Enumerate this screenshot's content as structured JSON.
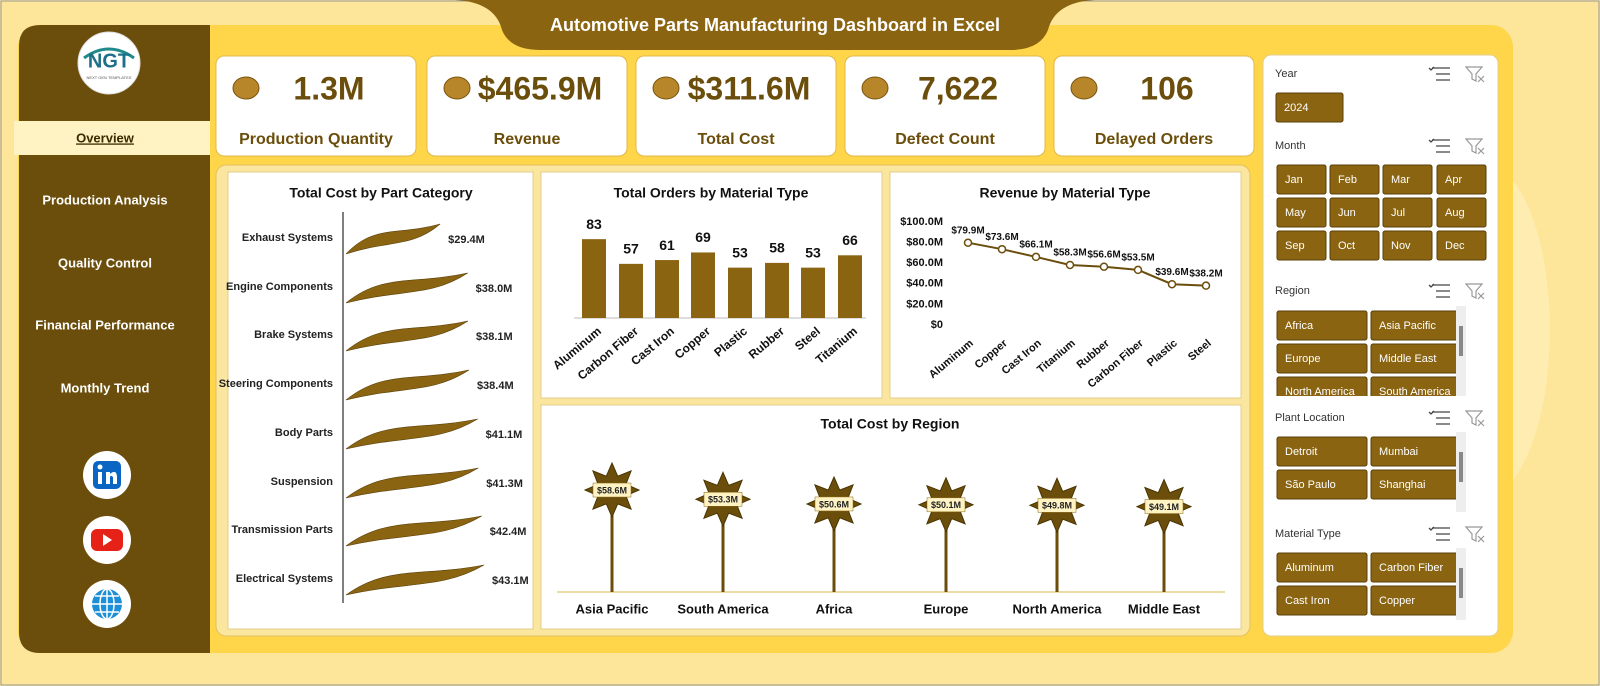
{
  "header": {
    "title": "Automotive Parts Manufacturing Dashboard in Excel"
  },
  "logo": {
    "text": "NGT",
    "subtitle": "NEXT GEN TEMPLATES"
  },
  "navigation": [
    "Overview",
    "Production Analysis",
    "Quality Control",
    "Financial Performance",
    "Monthly Trend"
  ],
  "kpis": [
    {
      "value": "1.3M",
      "label": "Production Quantity"
    },
    {
      "value": "$465.9M",
      "label": "Revenue"
    },
    {
      "value": "$311.6M",
      "label": "Total Cost"
    },
    {
      "value": "7,622",
      "label": "Defect Count"
    },
    {
      "value": "106",
      "label": "Delayed Orders"
    }
  ],
  "chart_data": [
    {
      "type": "bar",
      "orientation": "horizontal",
      "title": "Total Cost by Part Category",
      "color": "#8a6410",
      "categories": [
        "Exhaust Systems",
        "Engine Components",
        "Brake Systems",
        "Steering Components",
        "Body Parts",
        "Suspension",
        "Transmission Parts",
        "Electrical Systems"
      ],
      "values": [
        29.4,
        38.0,
        38.1,
        38.4,
        41.1,
        41.3,
        42.4,
        43.1
      ],
      "value_labels": [
        "$29.4M",
        "$38.0M",
        "$38.1M",
        "$38.4M",
        "$41.1M",
        "$41.3M",
        "$42.4M",
        "$43.1M"
      ]
    },
    {
      "type": "bar",
      "orientation": "vertical",
      "title": "Total Orders by Material Type",
      "color": "#8a6410",
      "categories": [
        "Aluminum",
        "Carbon Fiber",
        "Cast Iron",
        "Copper",
        "Plastic",
        "Rubber",
        "Steel",
        "Titanium"
      ],
      "values": [
        83,
        57,
        61,
        69,
        53,
        58,
        53,
        66
      ]
    },
    {
      "type": "line",
      "title": "Revenue  by Material Type",
      "color": "#6b4e0b",
      "categories": [
        "Aluminum",
        "Copper",
        "Cast Iron",
        "Titanium",
        "Rubber",
        "Carbon Fiber",
        "Plastic",
        "Steel"
      ],
      "values": [
        79.9,
        73.6,
        66.1,
        58.3,
        56.6,
        53.5,
        39.6,
        38.2
      ],
      "value_labels": [
        "$79.9M",
        "$73.6M",
        "$66.1M",
        "$58.3M",
        "$56.6M",
        "$53.5M",
        "$39.6M",
        "$38.2M"
      ],
      "ylim": [
        0,
        100
      ],
      "yticks": [
        {
          "value": 0,
          "label": "$0"
        },
        {
          "value": 20,
          "label": "$20.0M"
        },
        {
          "value": 40,
          "label": "$40.0M"
        },
        {
          "value": 60,
          "label": "$60.0M"
        },
        {
          "value": 80,
          "label": "$80.0M"
        },
        {
          "value": 100,
          "label": "$100.0M"
        }
      ]
    },
    {
      "type": "lollipop",
      "title": "Total Cost by Region",
      "color": "#6b4e0b",
      "categories": [
        "Asia Pacific",
        "South America",
        "Africa",
        "Europe",
        "North America",
        "Middle East"
      ],
      "values": [
        58.6,
        53.3,
        50.6,
        50.1,
        49.8,
        49.1
      ],
      "value_labels": [
        "$58.6M",
        "$53.3M",
        "$50.6M",
        "$50.1M",
        "$49.8M",
        "$49.1M"
      ]
    }
  ],
  "slicers": [
    {
      "title": "Year",
      "items": [
        "2024"
      ]
    },
    {
      "title": "Month",
      "items": [
        "Jan",
        "Feb",
        "Mar",
        "Apr",
        "May",
        "Jun",
        "Jul",
        "Aug",
        "Sep",
        "Oct",
        "Nov",
        "Dec"
      ]
    },
    {
      "title": "Region",
      "items": [
        "Africa",
        "Asia Pacific",
        "Europe",
        "Middle East",
        "North America",
        "South America"
      ]
    },
    {
      "title": "Plant Location",
      "items": [
        "Detroit",
        "Mumbai",
        "São Paulo",
        "Shanghai"
      ]
    },
    {
      "title": "Material Type",
      "items": [
        "Aluminum",
        "Carbon Fiber",
        "Cast Iron",
        "Copper"
      ]
    }
  ]
}
